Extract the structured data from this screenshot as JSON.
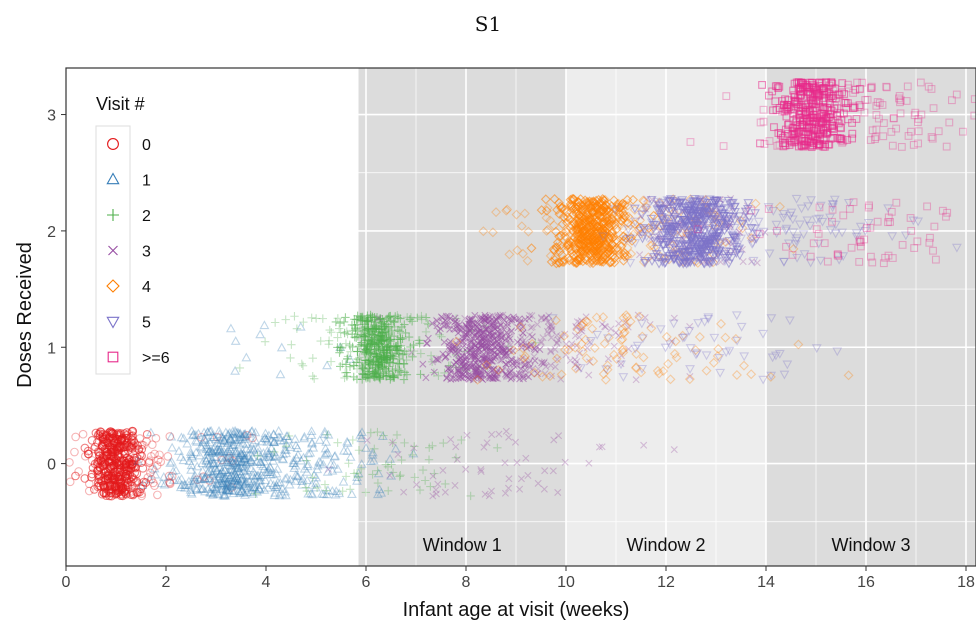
{
  "page": {
    "title": "S1"
  },
  "chart_data": {
    "type": "scatter",
    "title": "",
    "xlabel": "Infant age at visit (weeks)",
    "ylabel": "Doses Received",
    "xlim": [
      0,
      18.2
    ],
    "ylim": [
      -0.88,
      3.4
    ],
    "xticks": [
      0,
      2,
      4,
      6,
      8,
      10,
      12,
      14,
      16,
      18
    ],
    "yticks": [
      0,
      1,
      2,
      3
    ],
    "grid": true,
    "legend": {
      "title": "Visit #",
      "placement": "top-left",
      "entries": [
        {
          "label": "0",
          "marker": "circle",
          "color": "#e41a1c"
        },
        {
          "label": "1",
          "marker": "triangle-up",
          "color": "#377eb8"
        },
        {
          "label": "2",
          "marker": "plus",
          "color": "#4daf4a"
        },
        {
          "label": "3",
          "marker": "x",
          "color": "#984ea3"
        },
        {
          "label": "4",
          "marker": "diamond",
          "color": "#ff7f00"
        },
        {
          "label": "5",
          "marker": "triangle-down",
          "color": "#7b73c9"
        },
        {
          "label": ">=6",
          "marker": "square",
          "color": "#e7298a"
        }
      ]
    },
    "windows": [
      {
        "label": "Window 1",
        "x": [
          5.85,
          10.0
        ],
        "color": "#dcdcdc"
      },
      {
        "label": "Window 2",
        "x": [
          10.0,
          14.0
        ],
        "color": "#ededed"
      },
      {
        "label": "Window 3",
        "x": [
          14.0,
          18.2
        ],
        "color": "#dcdcdc"
      }
    ],
    "clusters": [
      {
        "visit": "0",
        "dose": 0,
        "center_week": 1.0,
        "spread_week": 0.25,
        "count": 380,
        "jitter": 0.28
      },
      {
        "visit": "0",
        "dose": 0,
        "center_week": 1.5,
        "spread_week": 0.9,
        "count": 90,
        "jitter": 0.28
      },
      {
        "visit": "1",
        "dose": 0,
        "center_week": 3.3,
        "spread_week": 0.55,
        "count": 420,
        "jitter": 0.28
      },
      {
        "visit": "1",
        "dose": 0,
        "center_week": 4.8,
        "spread_week": 0.9,
        "count": 140,
        "jitter": 0.28
      },
      {
        "visit": "1",
        "dose": 1,
        "center_week": 4.6,
        "spread_week": 0.6,
        "count": 12,
        "jitter": 0.25
      },
      {
        "visit": "2",
        "dose": 0,
        "center_week": 6.2,
        "spread_week": 1.1,
        "count": 60,
        "jitter": 0.28
      },
      {
        "visit": "2",
        "dose": 1,
        "center_week": 6.2,
        "spread_week": 0.3,
        "count": 360,
        "jitter": 0.28
      },
      {
        "visit": "2",
        "dose": 1,
        "center_week": 6.4,
        "spread_week": 1.1,
        "count": 120,
        "jitter": 0.28
      },
      {
        "visit": "3",
        "dose": 1,
        "center_week": 8.3,
        "spread_week": 0.45,
        "count": 430,
        "jitter": 0.28
      },
      {
        "visit": "3",
        "dose": 1,
        "center_week": 9.5,
        "spread_week": 1.2,
        "count": 180,
        "jitter": 0.28
      },
      {
        "visit": "3",
        "dose": 0,
        "center_week": 8.6,
        "spread_week": 1.2,
        "count": 55,
        "jitter": 0.28
      },
      {
        "visit": "3",
        "dose": 2,
        "center_week": 12.6,
        "spread_week": 0.6,
        "count": 120,
        "jitter": 0.28
      },
      {
        "visit": "4",
        "dose": 2,
        "center_week": 10.5,
        "spread_week": 0.35,
        "count": 420,
        "jitter": 0.28
      },
      {
        "visit": "4",
        "dose": 2,
        "center_week": 11.2,
        "spread_week": 1.3,
        "count": 150,
        "jitter": 0.28
      },
      {
        "visit": "4",
        "dose": 1,
        "center_week": 11.2,
        "spread_week": 1.4,
        "count": 90,
        "jitter": 0.28
      },
      {
        "visit": "5",
        "dose": 2,
        "center_week": 12.6,
        "spread_week": 0.45,
        "count": 420,
        "jitter": 0.28
      },
      {
        "visit": "5",
        "dose": 2,
        "center_week": 13.8,
        "spread_week": 1.4,
        "count": 120,
        "jitter": 0.28
      },
      {
        "visit": "5",
        "dose": 1,
        "center_week": 13.0,
        "spread_week": 1.3,
        "count": 50,
        "jitter": 0.28
      },
      {
        "visit": ">=6",
        "dose": 3,
        "center_week": 14.9,
        "spread_week": 0.35,
        "count": 330,
        "jitter": 0.28
      },
      {
        "visit": ">=6",
        "dose": 3,
        "center_week": 15.8,
        "spread_week": 1.2,
        "count": 120,
        "jitter": 0.28
      },
      {
        "visit": ">=6",
        "dose": 2,
        "center_week": 16.0,
        "spread_week": 1.2,
        "count": 60,
        "jitter": 0.28
      }
    ]
  }
}
